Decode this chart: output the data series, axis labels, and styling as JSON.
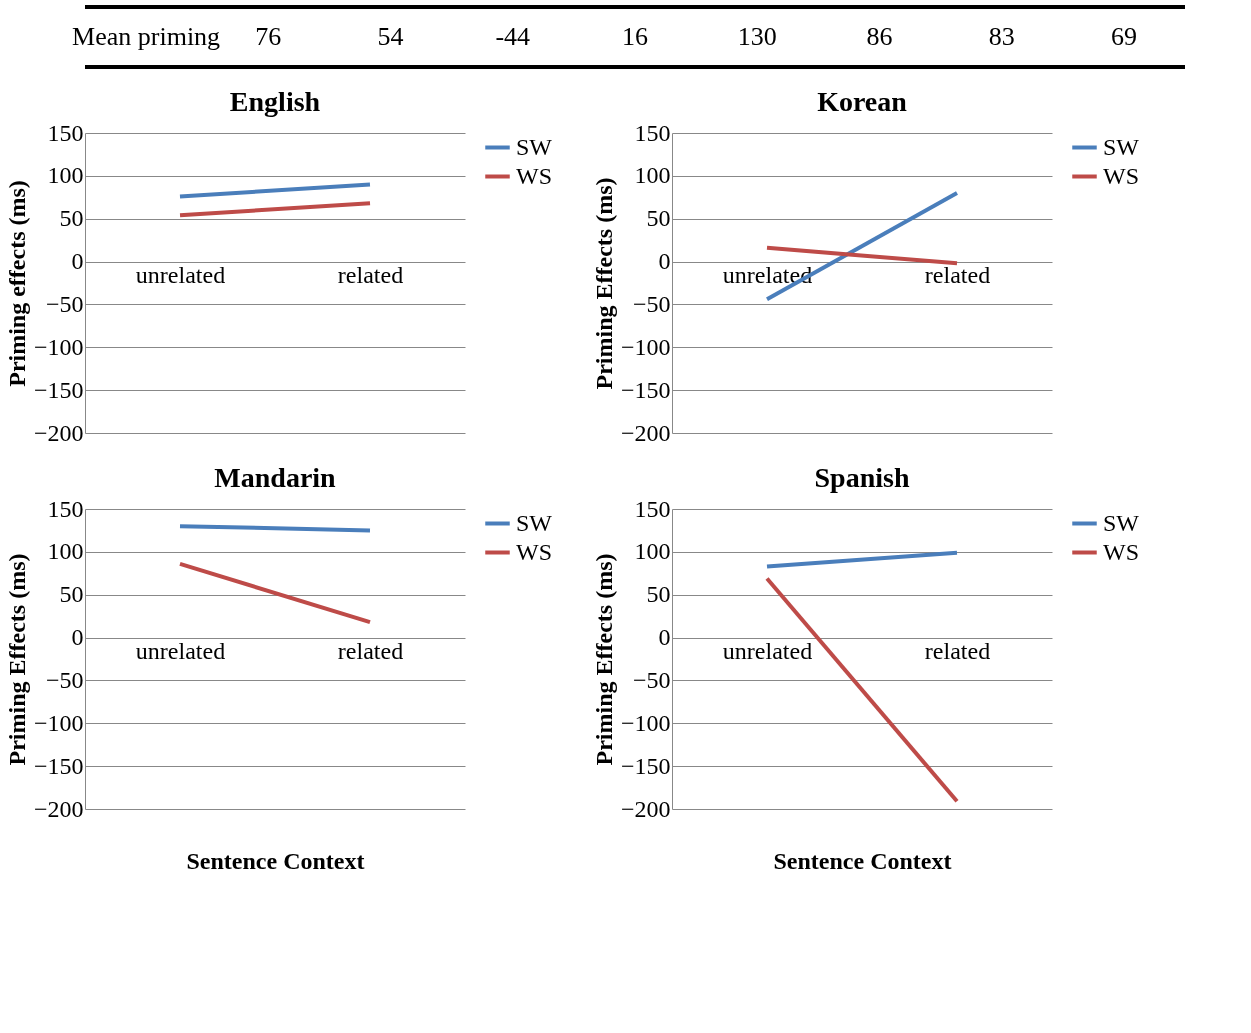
{
  "chart_data": [
    {
      "type": "other",
      "annotations": [
        "Mean priming",
        "76",
        "54",
        "-44",
        "16",
        "130",
        "86",
        "83",
        "69"
      ]
    },
    {
      "type": "line",
      "title": "English",
      "ylabel": "Priming effects (ms)",
      "categories": [
        "unrelated",
        "related"
      ],
      "ylim": [
        -200,
        150
      ],
      "yticks": [
        -200,
        -150,
        -100,
        -50,
        0,
        50,
        100,
        150
      ],
      "grid": "y",
      "legend": "right",
      "series": [
        {
          "name": "SW",
          "color": "#4a7ebb",
          "values": [
            76,
            90
          ]
        },
        {
          "name": "WS",
          "color": "#be4b48",
          "values": [
            54,
            68
          ]
        }
      ]
    },
    {
      "type": "line",
      "title": "Korean",
      "ylabel": "Priming Effects (ms)",
      "categories": [
        "unrelated",
        "related"
      ],
      "ylim": [
        -200,
        150
      ],
      "yticks": [
        -200,
        -150,
        -100,
        -50,
        0,
        50,
        100,
        150
      ],
      "grid": "y",
      "legend": "right",
      "series": [
        {
          "name": "SW",
          "color": "#4a7ebb",
          "values": [
            -44,
            80
          ]
        },
        {
          "name": "WS",
          "color": "#be4b48",
          "values": [
            16,
            -2
          ]
        }
      ]
    },
    {
      "type": "line",
      "title": "Mandarin",
      "ylabel": "Priming Effects (ms)",
      "xlabel": "Sentence Context",
      "categories": [
        "unrelated",
        "related"
      ],
      "ylim": [
        -200,
        150
      ],
      "yticks": [
        -200,
        -150,
        -100,
        -50,
        0,
        50,
        100,
        150
      ],
      "grid": "y",
      "legend": "right",
      "series": [
        {
          "name": "SW",
          "color": "#4a7ebb",
          "values": [
            130,
            125
          ]
        },
        {
          "name": "WS",
          "color": "#be4b48",
          "values": [
            86,
            18
          ]
        }
      ]
    },
    {
      "type": "line",
      "title": "Spanish",
      "ylabel": "Priming Effects (ms)",
      "xlabel": "Sentence Context",
      "categories": [
        "unrelated",
        "related"
      ],
      "ylim": [
        -200,
        150
      ],
      "yticks": [
        -200,
        -150,
        -100,
        -50,
        0,
        50,
        100,
        150
      ],
      "grid": "y",
      "legend": "right",
      "series": [
        {
          "name": "SW",
          "color": "#4a7ebb",
          "values": [
            83,
            99
          ]
        },
        {
          "name": "WS",
          "color": "#be4b48",
          "values": [
            69,
            -191
          ]
        }
      ]
    }
  ]
}
